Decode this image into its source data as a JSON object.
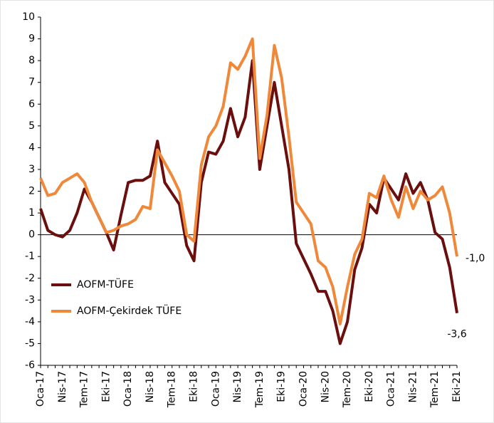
{
  "chart_data": {
    "type": "line",
    "categories": [
      "Oca-17",
      null,
      null,
      "Nis-17",
      null,
      null,
      "Tem-17",
      null,
      null,
      "Eki-17",
      null,
      null,
      "Oca-18",
      null,
      null,
      "Nis-18",
      null,
      null,
      "Tem-18",
      null,
      null,
      "Eki-18",
      null,
      null,
      "Oca-19",
      null,
      null,
      "Nis-19",
      null,
      null,
      "Tem-19",
      null,
      null,
      "Eki-19",
      null,
      null,
      "Oca-20",
      null,
      null,
      "Nis-20",
      null,
      null,
      "Tem-20",
      null,
      null,
      "Eki-20",
      null,
      null,
      "Oca-21",
      null,
      null,
      "Nis-21",
      null,
      null,
      "Tem-21",
      null,
      null,
      "Eki-21"
    ],
    "series": [
      {
        "name": "AOFM-TÜFE",
        "color": "#6b0e0e",
        "values": [
          1.2,
          0.2,
          0.0,
          -0.1,
          0.2,
          1.0,
          2.1,
          1.5,
          0.8,
          0.1,
          -0.7,
          0.9,
          2.4,
          2.5,
          2.5,
          2.7,
          4.3,
          2.4,
          1.9,
          1.4,
          -0.5,
          -1.2,
          2.4,
          3.8,
          3.7,
          4.3,
          5.8,
          4.5,
          5.4,
          8.0,
          3.0,
          5.0,
          7.0,
          5.0,
          3.0,
          -0.4,
          -1.1,
          -1.8,
          -2.6,
          -2.6,
          -3.5,
          -5.0,
          -4.0,
          -1.6,
          -0.6,
          1.4,
          1.0,
          2.6,
          2.1,
          1.6,
          2.8,
          1.9,
          2.4,
          1.6,
          0.1,
          -0.2,
          -1.5,
          -3.6
        ],
        "value_labels": [
          null,
          null,
          null,
          null,
          null,
          null,
          null,
          null,
          null,
          null,
          null,
          null,
          null,
          null,
          null,
          null,
          null,
          null,
          null,
          null,
          null,
          null,
          null,
          null,
          null,
          null,
          null,
          null,
          null,
          null,
          null,
          null,
          null,
          null,
          null,
          null,
          null,
          null,
          null,
          null,
          null,
          null,
          null,
          null,
          null,
          null,
          null,
          null,
          null,
          null,
          null,
          null,
          null,
          null,
          null,
          null,
          null,
          "-3,6"
        ]
      },
      {
        "name": "AOFM-Çekirdek TÜFE",
        "color": "#f0883a",
        "values": [
          2.6,
          1.8,
          1.9,
          2.4,
          2.6,
          2.8,
          2.4,
          1.5,
          0.8,
          0.1,
          0.2,
          0.4,
          0.5,
          0.7,
          1.3,
          1.2,
          3.9,
          3.3,
          2.7,
          2.0,
          0.0,
          -0.3,
          3.2,
          4.5,
          5.0,
          5.9,
          7.9,
          7.6,
          8.2,
          9.0,
          3.5,
          5.5,
          8.7,
          7.2,
          4.5,
          1.5,
          1.0,
          0.5,
          -1.2,
          -1.5,
          -2.4,
          -4.1,
          -2.4,
          -0.9,
          -0.2,
          1.9,
          1.7,
          2.7,
          1.6,
          0.8,
          2.2,
          1.2,
          2.0,
          1.6,
          1.8,
          2.2,
          1.0,
          -1.0
        ],
        "value_labels": [
          null,
          null,
          null,
          null,
          null,
          null,
          null,
          null,
          null,
          null,
          null,
          null,
          null,
          null,
          null,
          null,
          null,
          null,
          null,
          null,
          null,
          null,
          null,
          null,
          null,
          null,
          null,
          null,
          null,
          null,
          null,
          null,
          null,
          null,
          null,
          null,
          null,
          null,
          null,
          null,
          null,
          null,
          null,
          null,
          null,
          null,
          null,
          null,
          null,
          null,
          null,
          null,
          null,
          null,
          null,
          null,
          null,
          "-1,0"
        ]
      }
    ],
    "ylim": [
      -6,
      10
    ],
    "yticks": [
      -6,
      -5,
      -4,
      -3,
      -2,
      -1,
      0,
      1,
      2,
      3,
      4,
      5,
      6,
      7,
      8,
      9,
      10
    ],
    "grid": false,
    "legend": "lower left"
  }
}
